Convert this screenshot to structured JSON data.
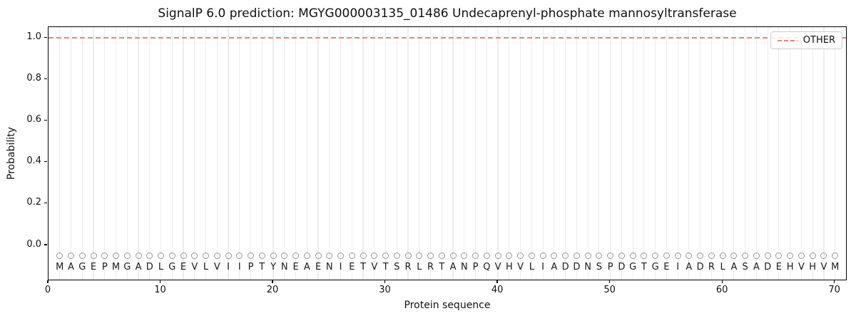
{
  "figure": {
    "title": "SignalP 6.0 prediction: MGYG000003135_01486 Undecaprenyl-phosphate mannosyltransferase"
  },
  "legend": {
    "position": "upper-right",
    "items": [
      {
        "label": "OTHER",
        "color": "#f08080",
        "line_style": "dashed"
      }
    ]
  },
  "chart_data": {
    "type": "line",
    "title": "SignalP 6.0 prediction: MGYG000003135_01486 Undecaprenyl-phosphate mannosyltransferase",
    "xlabel": "Protein sequence",
    "ylabel": "Probability",
    "xlim": [
      0,
      71.1
    ],
    "ylim": [
      -0.172,
      1.053
    ],
    "xticks": [
      0,
      10,
      20,
      30,
      40,
      50,
      60,
      70
    ],
    "yticks": [
      0.0,
      0.2,
      0.4,
      0.6,
      0.8,
      1.0
    ],
    "ytick_labels": [
      "0.0",
      "0.2",
      "0.4",
      "0.6",
      "0.8",
      "1.0"
    ],
    "grid": {
      "vertical_per_residue": true,
      "color": "#ececec",
      "horizontal": false
    },
    "legend_position": "upper right",
    "series": [
      {
        "name": "OTHER",
        "color": "#f08080",
        "style": "dashed",
        "x": [
          0,
          71.1
        ],
        "y": [
          1.0,
          1.0
        ]
      }
    ],
    "sequence": "MAGEPMGADLGEVLVIIPTYNEAENIETVTSRLRTANPQVHVLIADDNSPDGTGEIADRLASADEHVHVM",
    "sequence_length": 70,
    "sequence_row_y_value": -0.105,
    "position_markers": {
      "symbol": "O",
      "count": 70,
      "y_value": -0.05,
      "color": "#999999"
    }
  }
}
